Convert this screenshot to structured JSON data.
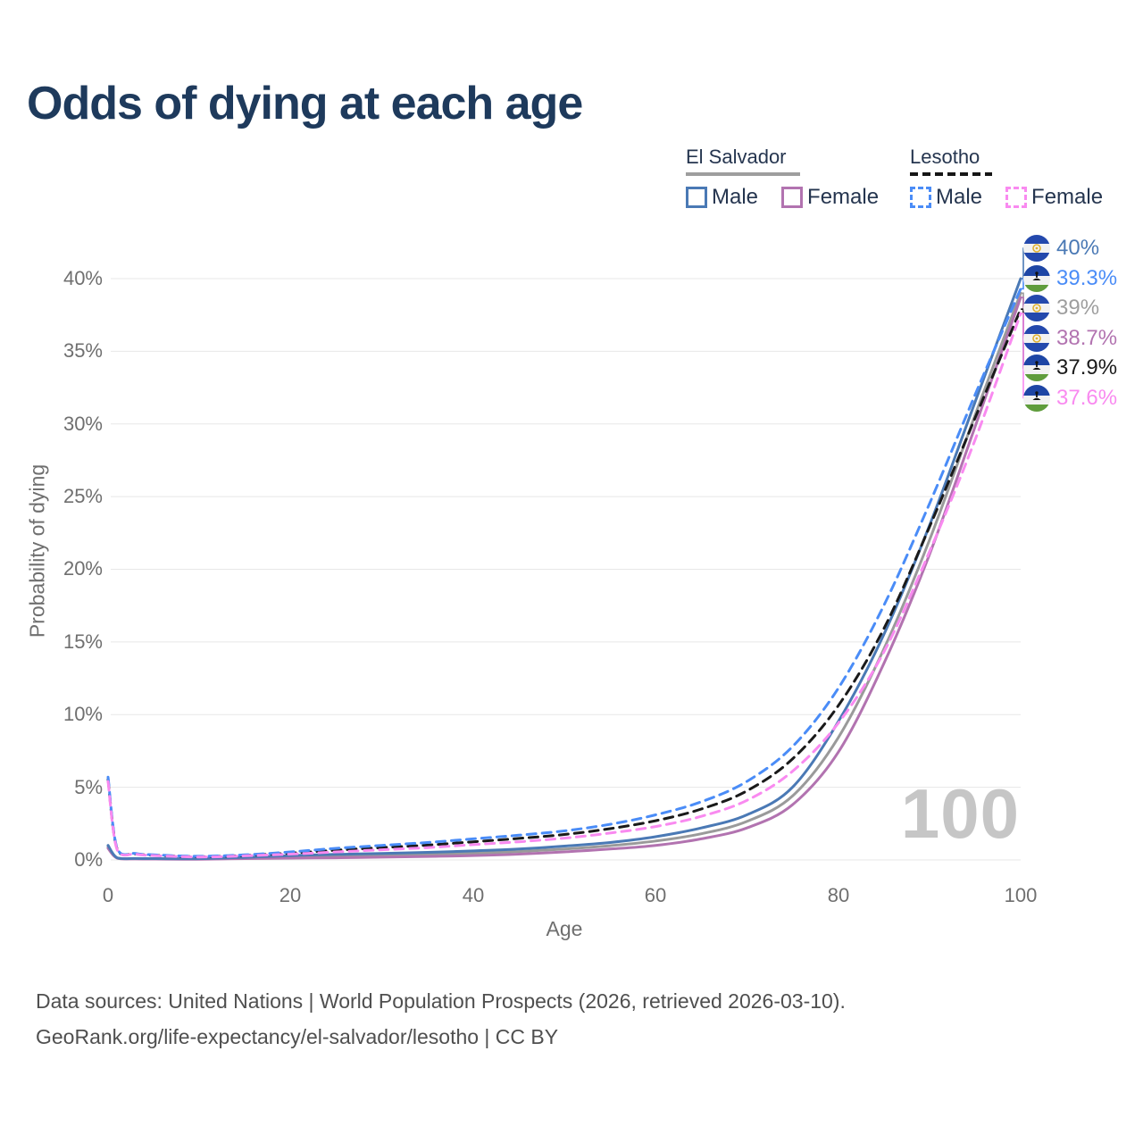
{
  "title": "Odds of dying at each age",
  "watermark": "100",
  "legend": {
    "groups": [
      {
        "name": "El Salvador",
        "line_style": "solid",
        "underline_color": "#9e9e9e",
        "items": [
          {
            "label": "Male",
            "color": "#4a79b5",
            "dashed": false
          },
          {
            "label": "Female",
            "color": "#b273b0",
            "dashed": false
          }
        ]
      },
      {
        "name": "Lesotho",
        "line_style": "dashed",
        "underline_color": "#161616",
        "items": [
          {
            "label": "Male",
            "color": "#4a8cf7",
            "dashed": true
          },
          {
            "label": "Female",
            "color": "#f98af0",
            "dashed": true
          }
        ]
      }
    ]
  },
  "axes": {
    "y_label": "Probability of dying",
    "x_label": "Age",
    "y_ticks": [
      "0%",
      "5%",
      "10%",
      "15%",
      "20%",
      "25%",
      "30%",
      "35%",
      "40%"
    ],
    "x_ticks": [
      "0",
      "20",
      "40",
      "60",
      "80",
      "100"
    ]
  },
  "end_labels": [
    {
      "value": "40%",
      "color": "#4a79b5",
      "flag": "el-salvador"
    },
    {
      "value": "39.3%",
      "color": "#4a8cf7",
      "flag": "lesotho"
    },
    {
      "value": "39%",
      "color": "#9e9e9e",
      "flag": "el-salvador"
    },
    {
      "value": "38.7%",
      "color": "#b273b0",
      "flag": "el-salvador"
    },
    {
      "value": "37.9%",
      "color": "#1a1a1a",
      "flag": "lesotho"
    },
    {
      "value": "37.6%",
      "color": "#f98af0",
      "flag": "lesotho"
    }
  ],
  "footer": {
    "line1": "Data sources: United Nations | World Population Prospects (2026, retrieved 2026-03-10).",
    "line2": "GeoRank.org/life-expectancy/el-salvador/lesotho | CC BY"
  },
  "chart_data": {
    "type": "line",
    "title": "Odds of dying at each age",
    "xlabel": "Age",
    "ylabel": "Probability of dying",
    "xlim": [
      0,
      100
    ],
    "ylim_pct": [
      0,
      43
    ],
    "x_ticks": [
      0,
      20,
      40,
      60,
      80,
      100
    ],
    "y_ticks_pct": [
      0,
      5,
      10,
      15,
      20,
      25,
      30,
      35,
      40
    ],
    "grid": "horizontal",
    "legend_position": "top-right",
    "ages": [
      0,
      1,
      3,
      5,
      10,
      15,
      20,
      25,
      30,
      35,
      40,
      45,
      50,
      55,
      60,
      65,
      70,
      75,
      80,
      85,
      90,
      95,
      100
    ],
    "series": [
      {
        "name": "El Salvador Male",
        "country": "El Salvador",
        "group": "Male",
        "line_style": "solid",
        "color": "#4a79b5",
        "end_label": "40%",
        "values_pct": [
          1.0,
          0.15,
          0.1,
          0.09,
          0.09,
          0.18,
          0.3,
          0.38,
          0.45,
          0.52,
          0.62,
          0.75,
          0.95,
          1.2,
          1.6,
          2.2,
          3.1,
          5.0,
          9.5,
          15.5,
          23.0,
          31.5,
          40.0
        ]
      },
      {
        "name": "El Salvador Female",
        "country": "El Salvador",
        "group": "Female",
        "line_style": "solid",
        "color": "#b273b0",
        "end_label": "38.7%",
        "values_pct": [
          0.8,
          0.12,
          0.07,
          0.06,
          0.05,
          0.09,
          0.12,
          0.15,
          0.19,
          0.24,
          0.3,
          0.4,
          0.55,
          0.75,
          1.0,
          1.45,
          2.2,
          3.8,
          7.4,
          13.5,
          21.0,
          29.8,
          38.7
        ]
      },
      {
        "name": "El Salvador All",
        "country": "El Salvador",
        "group": "All",
        "line_style": "solid",
        "color": "#9a9a9a",
        "end_label": "39%",
        "values_pct": [
          0.9,
          0.14,
          0.09,
          0.08,
          0.07,
          0.14,
          0.21,
          0.27,
          0.32,
          0.38,
          0.46,
          0.58,
          0.75,
          0.98,
          1.3,
          1.8,
          2.65,
          4.4,
          8.4,
          14.5,
          22.0,
          30.6,
          39.0
        ]
      },
      {
        "name": "Lesotho Male",
        "country": "Lesotho",
        "group": "Male",
        "line_style": "dashed",
        "color": "#4a8cf7",
        "end_label": "39.3%",
        "values_pct": [
          5.7,
          0.8,
          0.45,
          0.35,
          0.25,
          0.35,
          0.55,
          0.8,
          1.0,
          1.2,
          1.45,
          1.7,
          2.0,
          2.45,
          3.1,
          4.0,
          5.4,
          7.8,
          11.8,
          17.5,
          24.5,
          32.0,
          39.3
        ]
      },
      {
        "name": "Lesotho Female",
        "country": "Lesotho",
        "group": "Female",
        "line_style": "dashed",
        "color": "#f98af0",
        "end_label": "37.6%",
        "values_pct": [
          5.4,
          0.7,
          0.4,
          0.3,
          0.2,
          0.28,
          0.4,
          0.55,
          0.7,
          0.85,
          1.05,
          1.25,
          1.5,
          1.85,
          2.3,
          3.0,
          4.1,
          6.1,
          9.4,
          14.3,
          21.2,
          28.9,
          37.6
        ]
      },
      {
        "name": "Lesotho All",
        "country": "Lesotho",
        "group": "All",
        "line_style": "dashed",
        "color": "#1a1a1a",
        "end_label": "37.9%",
        "values_pct": [
          5.55,
          0.75,
          0.42,
          0.32,
          0.22,
          0.31,
          0.47,
          0.67,
          0.85,
          1.02,
          1.25,
          1.48,
          1.75,
          2.15,
          2.7,
          3.5,
          4.75,
          6.95,
          10.6,
          15.9,
          22.9,
          30.4,
          37.9
        ]
      }
    ]
  }
}
